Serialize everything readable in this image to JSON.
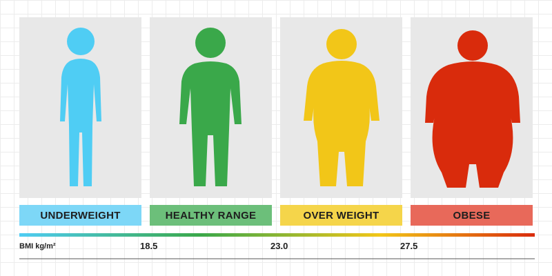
{
  "categories": [
    {
      "label": "UNDERWEIGHT"
    },
    {
      "label": "HEALTHY RANGE"
    },
    {
      "label": "OVER WEIGHT"
    },
    {
      "label": "OBESE"
    }
  ],
  "scale": {
    "label": "BMI kg/m²",
    "thresholds": [
      "18.5",
      "23.0",
      "27.5"
    ]
  }
}
